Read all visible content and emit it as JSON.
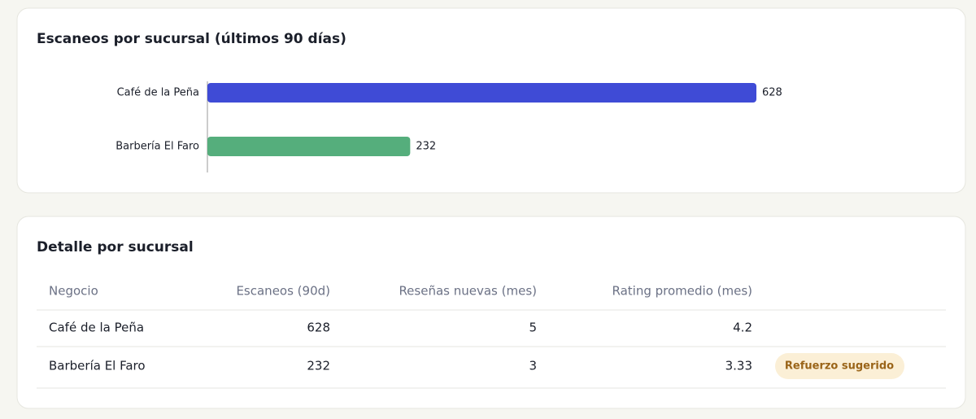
{
  "chart_data": {
    "type": "bar",
    "orientation": "horizontal",
    "title": "Escaneos por sucursal (últimos 90 días)",
    "categories": [
      "Café de la Peña",
      "Barbería El Faro"
    ],
    "values": [
      628,
      232
    ],
    "colors": [
      "#3f4bd6",
      "#55ae7c"
    ]
  },
  "table": {
    "title": "Detalle por sucursal",
    "columns": [
      "Negocio",
      "Escaneos (90d)",
      "Reseñas nuevas (mes)",
      "Rating promedio (mes)"
    ],
    "rows": [
      {
        "cells": [
          "Café de la Peña",
          628,
          5,
          4.2
        ]
      },
      {
        "cells": [
          "Barbería El Faro",
          232,
          3,
          3.33
        ],
        "tag": "Refuerzo sugerido"
      }
    ]
  }
}
